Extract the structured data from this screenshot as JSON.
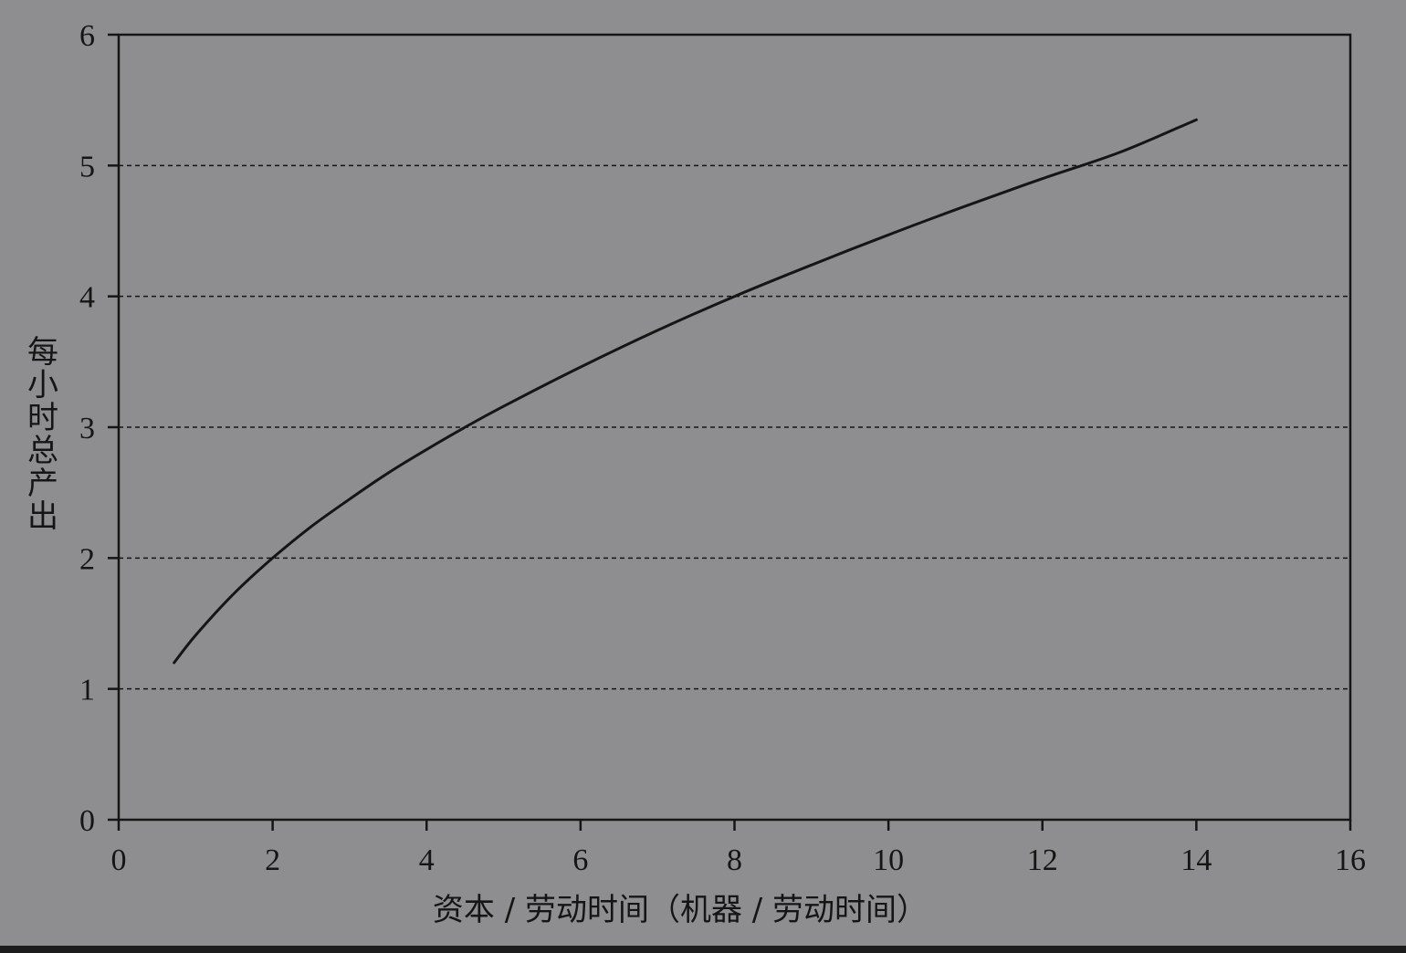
{
  "chart_data": {
    "type": "line",
    "title": "",
    "xlabel": "资本 / 劳动时间（机器 / 劳动时间）",
    "ylabel": "每小时总产出",
    "xlim": [
      0,
      16
    ],
    "ylim": [
      0,
      6
    ],
    "xticks": [
      0,
      2,
      4,
      6,
      8,
      10,
      12,
      14,
      16
    ],
    "yticks": [
      0,
      1,
      2,
      3,
      4,
      5,
      6
    ],
    "grid": "horizontal dashed lines at y = 1 to 5",
    "legend": "none",
    "series": [
      {
        "x": [
          0.72,
          1,
          1.5,
          2,
          2.5,
          3,
          3.5,
          4,
          4.5,
          5,
          6,
          7,
          8,
          9,
          10,
          11,
          12,
          13,
          14
        ],
        "y": [
          1.2,
          1.41,
          1.73,
          2.0,
          2.24,
          2.45,
          2.65,
          2.83,
          3.0,
          3.16,
          3.46,
          3.74,
          4.0,
          4.24,
          4.47,
          4.69,
          4.9,
          5.1,
          5.35
        ]
      }
    ],
    "colors": {
      "background": "#8e8e90",
      "line": "#151515",
      "text": "#151515"
    }
  }
}
